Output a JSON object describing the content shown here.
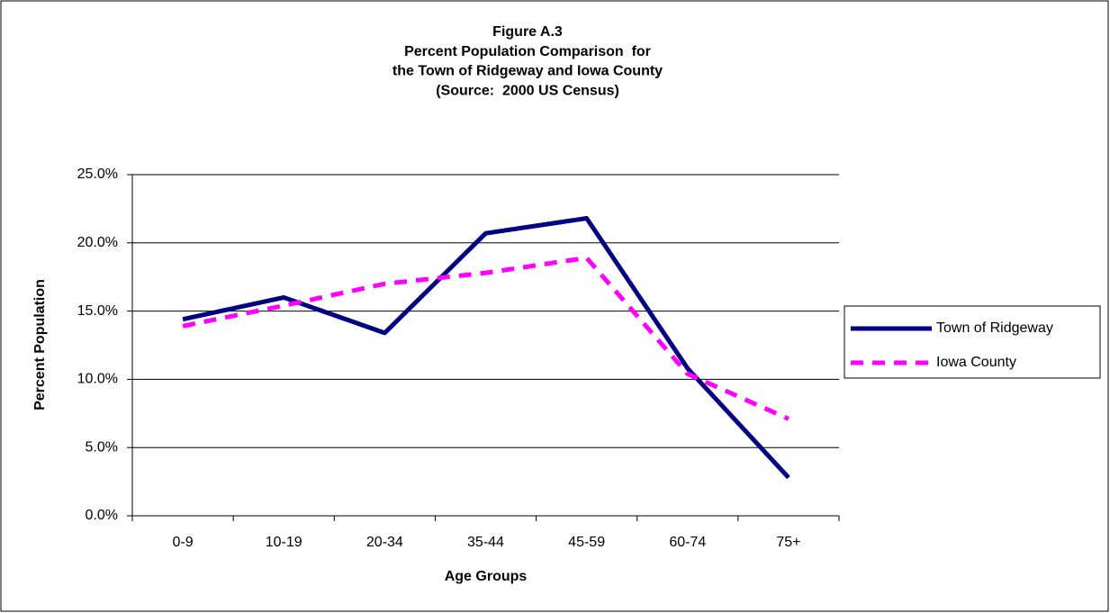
{
  "chart_data": {
    "type": "line",
    "title": [
      "Figure A.3",
      "Percent Population Comparison  for",
      "the Town of Ridgeway and Iowa County",
      "(Source:  2000 US Census)"
    ],
    "x_label": "Age Groups",
    "y_label": "Percent Population",
    "categories": [
      "0-9",
      "10-19",
      "20-34",
      "35-44",
      "45-59",
      "60-74",
      "75+"
    ],
    "series": [
      {
        "name": "Town of Ridgeway",
        "color": "#000080",
        "dashed": false,
        "values": [
          14.4,
          16.0,
          13.4,
          20.7,
          21.8,
          10.8,
          2.8
        ]
      },
      {
        "name": "Iowa County",
        "color": "#ff00ff",
        "dashed": true,
        "values": [
          13.9,
          15.4,
          17.0,
          17.8,
          18.9,
          10.4,
          7.1
        ]
      }
    ],
    "ylim": [
      0,
      25
    ],
    "yticks": [
      {
        "value": 0,
        "label": "0.0%"
      },
      {
        "value": 5,
        "label": "5.0%"
      },
      {
        "value": 10,
        "label": "10.0%"
      },
      {
        "value": 15,
        "label": "15.0%"
      },
      {
        "value": 20,
        "label": "20.0%"
      },
      {
        "value": 25,
        "label": "25.0%"
      }
    ],
    "grid": true,
    "legend": "right"
  }
}
